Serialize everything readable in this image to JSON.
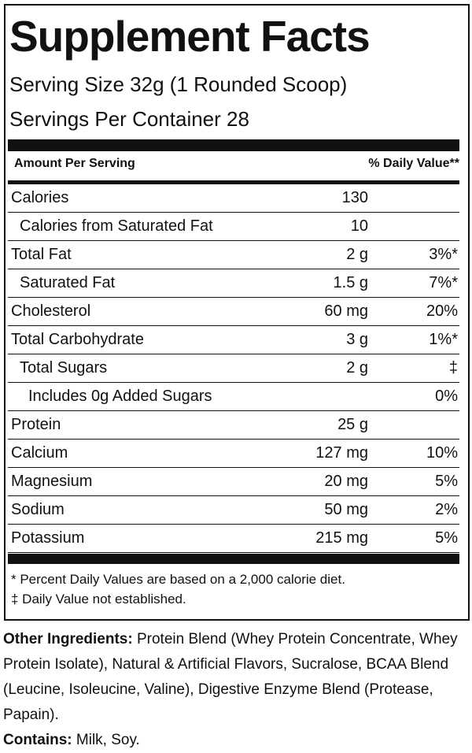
{
  "header": {
    "title": "Supplement Facts",
    "serving_size": "Serving Size 32g (1 Rounded Scoop)",
    "servings_per_container": "Servings Per Container  28"
  },
  "columns": {
    "amount": "Amount Per Serving",
    "daily_value": "% Daily Value**"
  },
  "rows": [
    {
      "label": "Calories",
      "level": 0,
      "amount": "130"
    },
    {
      "label": "Calories from Saturated Fat",
      "level": 1,
      "amount": "10"
    },
    {
      "label": "Total Fat",
      "level": 0,
      "amount": "2 g",
      "dv": "3%*"
    },
    {
      "label": "Saturated Fat",
      "level": 1,
      "amount": "1.5 g",
      "dv": "7%*"
    },
    {
      "label": "Cholesterol",
      "level": 0,
      "amount": "60 mg",
      "dv": "20%"
    },
    {
      "label": "Total Carbohydrate",
      "level": 0,
      "amount": "3 g",
      "dv": "1%*"
    },
    {
      "label": "Total Sugars",
      "level": 1,
      "amount": "2 g",
      "dv": "‡"
    },
    {
      "label": "Includes 0g Added Sugars",
      "level": 2,
      "dv": "0%"
    },
    {
      "label": "Protein",
      "level": 0,
      "amount": "25 g"
    },
    {
      "label": "Calcium",
      "level": 0,
      "amount": "127 mg",
      "dv": "10%"
    },
    {
      "label": "Magnesium",
      "level": 0,
      "amount": "20 mg",
      "dv": "5%"
    },
    {
      "label": "Sodium",
      "level": 0,
      "amount": "50 mg",
      "dv": "2%"
    },
    {
      "label": "Potassium",
      "level": 0,
      "amount": "215 mg",
      "dv": "5%"
    }
  ],
  "footnotes": [
    "* Percent Daily Values are based on a 2,000 calorie diet.",
    "‡ Daily Value not established."
  ],
  "ingredients": {
    "label": "Other Ingredients:",
    "text": "Protein Blend (Whey Protein Concentrate, Whey Protein Isolate), Natural & Artificial Flavors, Sucralose, BCAA Blend (Leucine, Isoleucine, Valine), Digestive Enzyme Blend (Protease, Papain)."
  },
  "contains": {
    "label": "Contains:",
    "text": "Milk, Soy."
  }
}
